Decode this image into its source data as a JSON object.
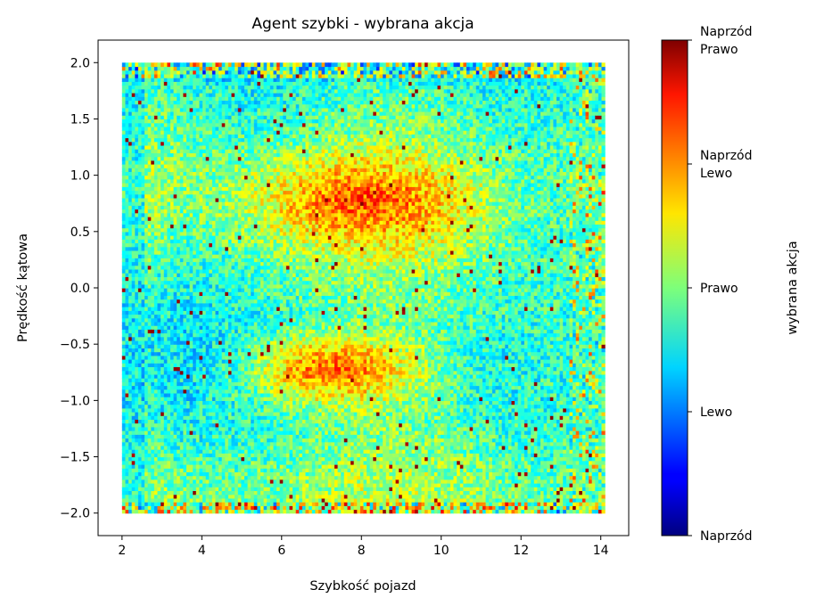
{
  "chart_data": {
    "type": "heatmap",
    "title": "Agent szybki - wybrana akcja",
    "xlabel": "Szybkość pojazd",
    "ylabel": "Prędkość kątowa",
    "xlim": [
      1.4,
      14.7
    ],
    "ylim": [
      -2.2,
      2.2
    ],
    "x_ticks": [
      2,
      4,
      6,
      8,
      10,
      12,
      14
    ],
    "x_tick_labels": [
      "2",
      "4",
      "6",
      "8",
      "10",
      "12",
      "14"
    ],
    "y_ticks": [
      -2.0,
      -1.5,
      -1.0,
      -0.5,
      0.0,
      0.5,
      1.0,
      1.5,
      2.0
    ],
    "y_tick_labels": [
      "−2.0",
      "−1.5",
      "−1.0",
      "−0.5",
      "0.0",
      "0.5",
      "1.0",
      "1.5",
      "2.0"
    ],
    "data_extent": {
      "x": [
        2.0,
        14.1
      ],
      "y": [
        -2.0,
        2.0
      ]
    },
    "colormap": "jet",
    "colorbar": {
      "label": "wybrana akcja",
      "range": [
        0,
        4
      ],
      "ticks": [
        {
          "value": 0,
          "lines": [
            "Naprzód"
          ]
        },
        {
          "value": 1,
          "lines": [
            "Lewo"
          ]
        },
        {
          "value": 2,
          "lines": [
            "Prawo"
          ]
        },
        {
          "value": 3,
          "lines": [
            "Naprzód",
            "Lewo"
          ]
        },
        {
          "value": 4,
          "lines": [
            "Naprzód",
            "Prawo"
          ]
        }
      ]
    },
    "regions": [
      {
        "x": [
          5.5,
          10.5
        ],
        "y": [
          0.4,
          1.15
        ],
        "value": 3.3
      },
      {
        "x": [
          5.0,
          9.5
        ],
        "y": [
          -1.05,
          -0.4
        ],
        "value": 3.3
      },
      {
        "x": [
          2.0,
          5.0
        ],
        "y": [
          -1.6,
          0.6
        ],
        "value": 1.4
      },
      {
        "x": [
          11.5,
          14.1
        ],
        "y": [
          -2.0,
          2.0
        ],
        "value": 1.7
      },
      {
        "x": [
          2.0,
          14.1
        ],
        "y": [
          1.85,
          2.0
        ],
        "value": 0.9
      }
    ]
  }
}
